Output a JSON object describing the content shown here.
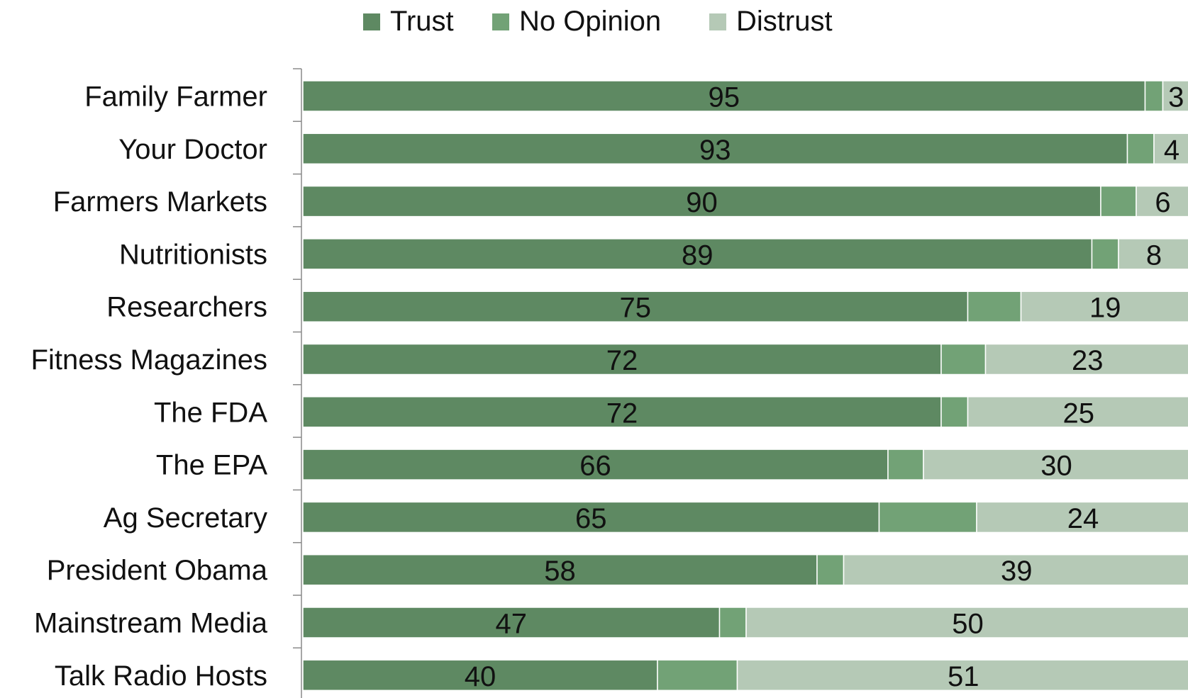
{
  "chart_data": {
    "type": "bar",
    "orientation": "horizontal",
    "stacked": true,
    "title": "",
    "xlabel": "",
    "ylabel": "",
    "xlim": [
      0,
      100
    ],
    "grid": false,
    "legend_position": "top",
    "categories": [
      "Family Farmer",
      "Your Doctor",
      "Farmers Markets",
      "Nutritionists",
      "Researchers",
      "Fitness Magazines",
      "The FDA",
      "The EPA",
      "Ag Secretary",
      "President Obama",
      "Mainstream Media",
      "Talk Radio Hosts"
    ],
    "series": [
      {
        "name": "Trust",
        "color": "#5e8962",
        "label_values": true,
        "values": [
          95,
          93,
          90,
          89,
          75,
          72,
          72,
          66,
          65,
          58,
          47,
          40
        ]
      },
      {
        "name": "No Opinion",
        "color": "#72a276",
        "label_values": false,
        "values": [
          2,
          3,
          4,
          3,
          6,
          5,
          3,
          4,
          11,
          3,
          3,
          9
        ]
      },
      {
        "name": "Distrust",
        "color": "#b5c9b6",
        "label_values": true,
        "values": [
          3,
          4,
          6,
          8,
          19,
          23,
          25,
          30,
          24,
          39,
          50,
          51
        ]
      }
    ]
  }
}
